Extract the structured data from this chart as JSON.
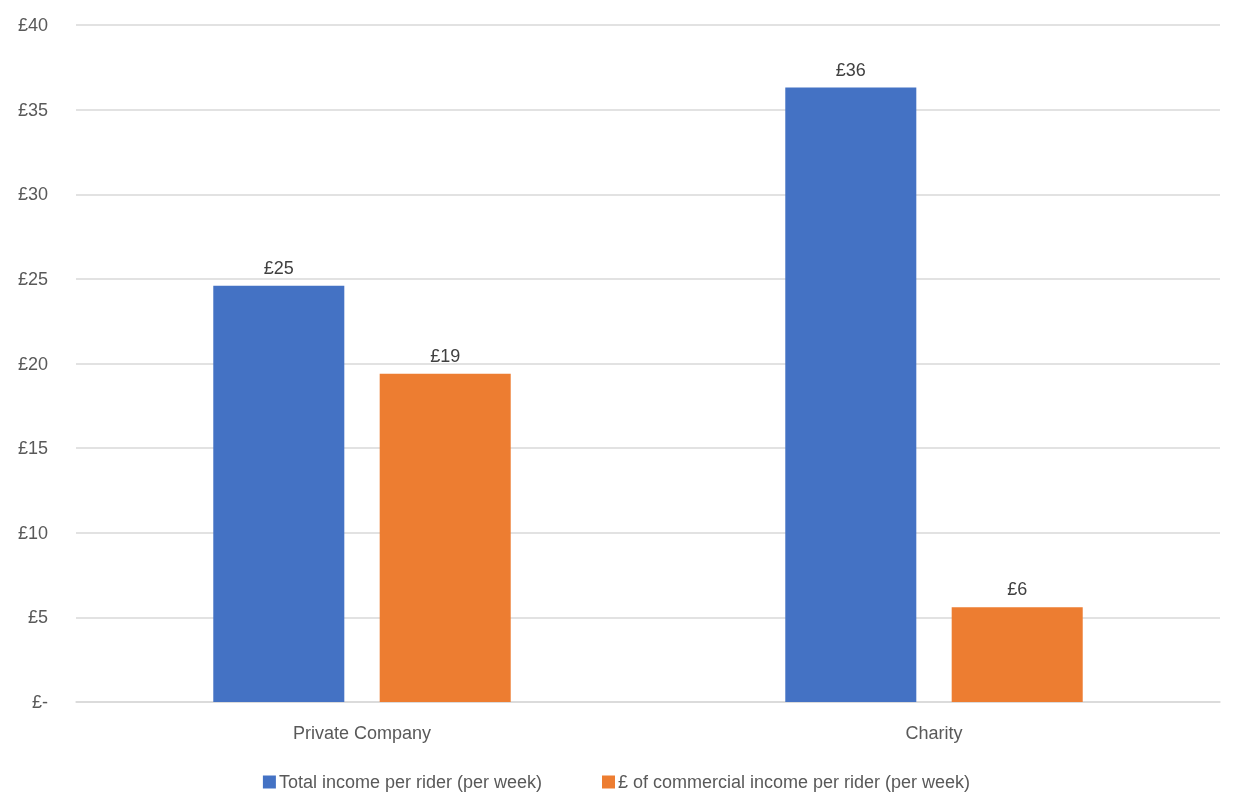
{
  "chart_data": {
    "type": "bar",
    "categories": [
      "Private Company",
      "Charity"
    ],
    "series": [
      {
        "name": "Total income per rider (per week)",
        "color": "#4472c4",
        "values": [
          24.6,
          36.3
        ],
        "value_labels": [
          "£25",
          "£36"
        ]
      },
      {
        "name": "£ of commercial income per rider (per week)",
        "color": "#ed7d31",
        "values": [
          19.4,
          5.6
        ],
        "value_labels": [
          "£19",
          "£6"
        ]
      }
    ],
    "ylim": [
      0,
      40
    ],
    "yticks": [
      {
        "value": 0,
        "label": "£-"
      },
      {
        "value": 5,
        "label": "£5"
      },
      {
        "value": 10,
        "label": "£10"
      },
      {
        "value": 15,
        "label": "£15"
      },
      {
        "value": 20,
        "label": "£20"
      },
      {
        "value": 25,
        "label": "£25"
      },
      {
        "value": 30,
        "label": "£30"
      },
      {
        "value": 35,
        "label": "£35"
      },
      {
        "value": 40,
        "label": "£40"
      }
    ],
    "grid": "y",
    "legend": "bottom"
  }
}
